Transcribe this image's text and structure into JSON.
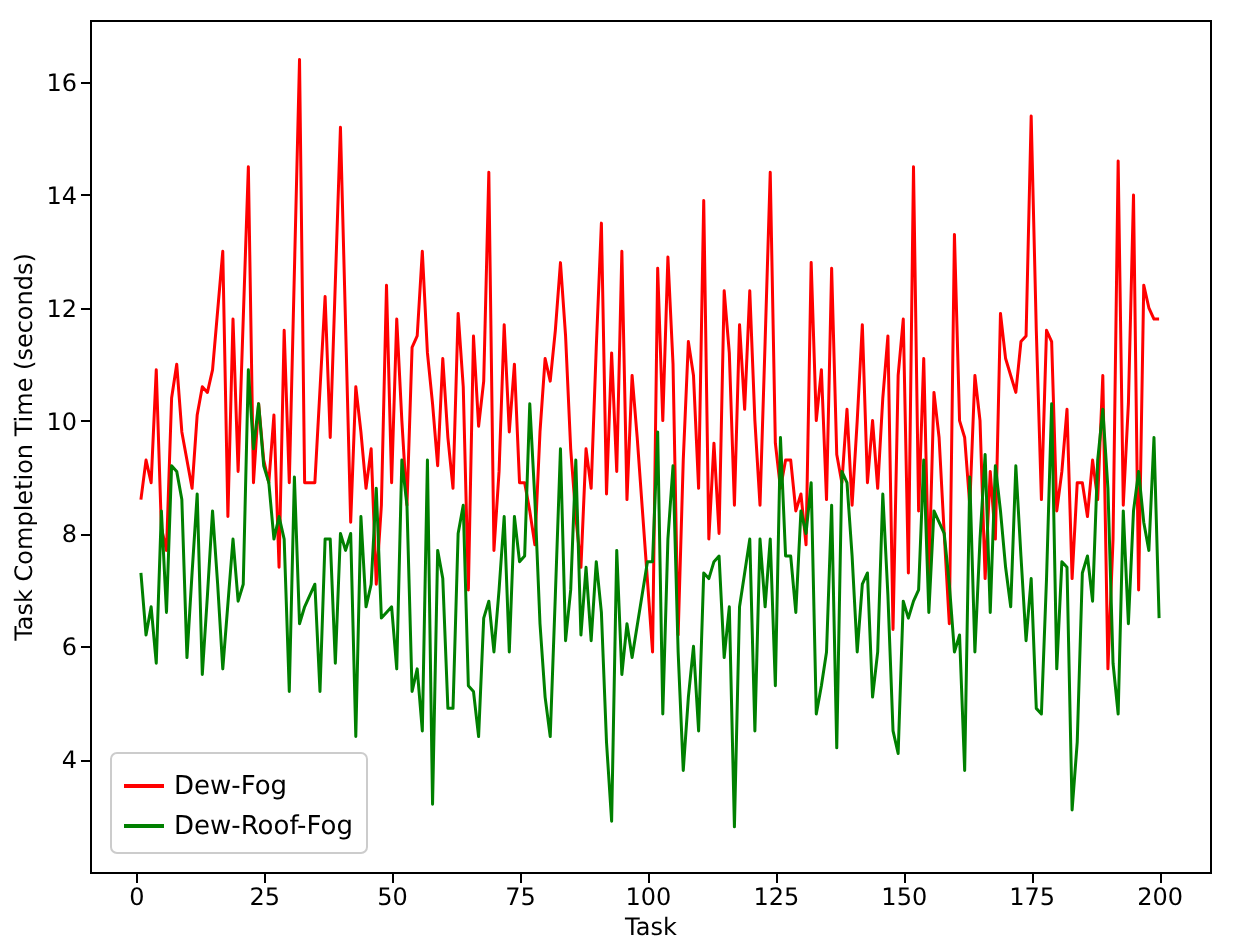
{
  "chart_data": {
    "type": "line",
    "xlabel": "Task",
    "ylabel": "Task Completion Time (seconds)",
    "xlim": [
      -8.95,
      209.95
    ],
    "ylim": [
      2.0,
      17.1
    ],
    "xticks": [
      0,
      25,
      50,
      75,
      100,
      125,
      150,
      175,
      200
    ],
    "yticks": [
      4,
      6,
      8,
      10,
      12,
      14,
      16
    ],
    "grid": false,
    "legend": "bottom left",
    "line_style": "solid",
    "marker": "none",
    "series": [
      {
        "name": "Dew-Fog",
        "color": "#ff0000",
        "x": [
          1,
          2,
          3,
          4,
          5,
          6,
          7,
          8,
          9,
          11,
          12,
          13,
          14,
          15,
          17,
          18,
          19,
          20,
          21,
          22,
          23,
          24,
          25,
          26,
          27,
          28,
          29,
          30,
          32,
          33,
          35,
          37,
          38,
          40,
          42,
          43,
          44,
          45,
          46,
          47,
          48,
          49,
          50,
          51,
          52,
          53,
          54,
          55,
          56,
          57,
          58,
          59,
          60,
          61,
          62,
          63,
          64,
          65,
          66,
          67,
          68,
          69,
          70,
          71,
          72,
          73,
          74,
          75,
          76,
          77,
          78,
          79,
          80,
          81,
          82,
          83,
          84,
          85,
          86,
          87,
          88,
          89,
          90,
          91,
          92,
          93,
          94,
          95,
          96,
          97,
          98,
          101,
          102,
          103,
          104,
          105,
          106,
          107,
          108,
          109,
          110,
          111,
          112,
          113,
          114,
          115,
          116,
          117,
          118,
          119,
          120,
          121,
          122,
          123,
          124,
          125,
          126,
          127,
          128,
          129,
          130,
          131,
          132,
          133,
          134,
          135,
          136,
          137,
          138,
          139,
          140,
          141,
          142,
          143,
          144,
          145,
          146,
          147,
          148,
          149,
          150,
          151,
          152,
          153,
          154,
          155,
          156,
          157,
          158,
          159,
          160,
          161,
          162,
          163,
          164,
          165,
          166,
          167,
          168,
          169,
          170,
          171,
          172,
          173,
          174,
          175,
          176,
          177,
          178,
          179,
          180,
          181,
          182,
          183,
          184,
          185,
          186,
          187,
          188,
          189,
          190,
          191,
          192,
          193,
          194,
          195,
          196,
          197,
          198,
          199,
          200
        ],
        "values": [
          8.6,
          9.3,
          8.9,
          10.9,
          8.1,
          7.7,
          10.4,
          11.0,
          9.8,
          8.8,
          10.1,
          10.6,
          10.5,
          10.9,
          13.0,
          8.3,
          11.8,
          9.1,
          11.8,
          14.5,
          8.9,
          10.3,
          9.3,
          8.9,
          10.1,
          7.4,
          11.6,
          8.9,
          16.4,
          8.9,
          8.9,
          12.2,
          9.7,
          15.2,
          8.2,
          10.6,
          9.8,
          8.8,
          9.5,
          7.1,
          8.5,
          12.4,
          8.9,
          11.8,
          10.0,
          8.5,
          11.3,
          11.5,
          13.0,
          11.2,
          10.3,
          9.2,
          11.1,
          9.7,
          8.8,
          11.9,
          10.6,
          7.0,
          11.5,
          9.9,
          10.7,
          14.4,
          7.7,
          9.1,
          11.7,
          9.8,
          11.0,
          8.9,
          8.9,
          8.4,
          7.8,
          9.8,
          11.1,
          10.7,
          11.6,
          12.8,
          11.5,
          9.5,
          8.3,
          7.4,
          9.5,
          8.8,
          11.3,
          13.5,
          8.7,
          11.2,
          9.1,
          13.0,
          8.6,
          10.8,
          9.7,
          5.9,
          12.7,
          10.0,
          12.9,
          11.0,
          6.2,
          9.3,
          11.4,
          10.8,
          8.8,
          13.9,
          7.9,
          9.6,
          8.0,
          12.3,
          11.2,
          8.5,
          11.7,
          10.2,
          12.3,
          10.0,
          8.5,
          11.4,
          14.4,
          9.6,
          8.8,
          9.3,
          9.3,
          8.4,
          8.7,
          7.8,
          12.8,
          10.0,
          10.9,
          8.6,
          12.7,
          9.4,
          8.9,
          10.2,
          8.5,
          10.0,
          11.7,
          8.9,
          10.0,
          8.8,
          10.4,
          11.5,
          6.3,
          10.8,
          11.8,
          7.3,
          14.5,
          8.4,
          11.1,
          7.2,
          10.5,
          9.7,
          8.0,
          6.4,
          13.3,
          10.0,
          9.7,
          8.5,
          10.8,
          10.0,
          7.2,
          9.1,
          7.9,
          11.9,
          11.1,
          10.8,
          10.5,
          11.4,
          11.5,
          15.4,
          11.6,
          8.6,
          11.6,
          11.4,
          8.4,
          9.1,
          10.2,
          7.2,
          8.9,
          8.9,
          8.3,
          9.3,
          8.6,
          10.8,
          5.6,
          7.9,
          14.6,
          8.5,
          10.3,
          14.0,
          7.0,
          12.4,
          12.0,
          11.8,
          11.8
        ]
      },
      {
        "name": "Dew-Roof-Fog",
        "color": "#008000",
        "x": [
          1,
          2,
          3,
          4,
          5,
          6,
          7,
          8,
          9,
          10,
          11,
          12,
          13,
          14,
          15,
          16,
          17,
          19,
          20,
          21,
          22,
          23,
          24,
          25,
          26,
          27,
          28,
          29,
          30,
          31,
          32,
          33,
          35,
          36,
          37,
          38,
          39,
          40,
          41,
          42,
          43,
          44,
          45,
          46,
          47,
          48,
          49,
          50,
          51,
          52,
          53,
          54,
          55,
          56,
          57,
          58,
          59,
          60,
          61,
          62,
          63,
          64,
          65,
          66,
          67,
          68,
          69,
          70,
          71,
          72,
          73,
          74,
          75,
          76,
          77,
          78,
          79,
          80,
          81,
          82,
          83,
          84,
          85,
          86,
          87,
          88,
          89,
          90,
          91,
          92,
          93,
          94,
          95,
          96,
          97,
          100,
          101,
          102,
          103,
          104,
          105,
          106,
          107,
          108,
          109,
          110,
          111,
          112,
          113,
          114,
          115,
          116,
          117,
          118,
          119,
          120,
          121,
          122,
          123,
          124,
          125,
          126,
          127,
          128,
          129,
          130,
          131,
          132,
          133,
          134,
          135,
          136,
          137,
          138,
          139,
          140,
          141,
          142,
          143,
          144,
          145,
          146,
          147,
          148,
          149,
          150,
          151,
          152,
          153,
          154,
          155,
          156,
          158,
          159,
          160,
          161,
          162,
          163,
          164,
          165,
          166,
          167,
          168,
          169,
          170,
          171,
          172,
          173,
          174,
          175,
          176,
          177,
          178,
          179,
          180,
          181,
          182,
          183,
          184,
          185,
          186,
          187,
          188,
          189,
          190,
          191,
          192,
          193,
          194,
          195,
          196,
          197,
          198,
          199,
          200
        ],
        "values": [
          7.3,
          6.2,
          6.7,
          5.7,
          8.4,
          6.6,
          9.2,
          9.1,
          8.6,
          5.8,
          7.3,
          8.7,
          5.5,
          6.9,
          8.4,
          7.1,
          5.6,
          7.9,
          6.8,
          7.1,
          10.9,
          9.5,
          10.3,
          9.2,
          8.9,
          7.9,
          8.3,
          7.9,
          5.2,
          9.0,
          6.4,
          6.7,
          7.1,
          5.2,
          7.9,
          7.9,
          5.7,
          8.0,
          7.7,
          8.0,
          4.4,
          8.3,
          6.7,
          7.1,
          8.8,
          6.5,
          6.6,
          6.7,
          5.6,
          9.3,
          8.5,
          5.2,
          5.6,
          4.5,
          9.3,
          3.2,
          7.7,
          7.2,
          4.9,
          4.9,
          8.0,
          8.5,
          5.3,
          5.2,
          4.4,
          6.5,
          6.8,
          5.9,
          7.0,
          8.3,
          5.9,
          8.3,
          7.5,
          7.6,
          10.3,
          8.6,
          6.4,
          5.1,
          4.4,
          6.9,
          9.5,
          6.1,
          7.0,
          9.3,
          6.2,
          7.4,
          6.1,
          7.5,
          6.6,
          4.3,
          2.9,
          7.7,
          5.5,
          6.4,
          5.8,
          7.5,
          7.5,
          9.8,
          4.8,
          7.9,
          9.2,
          5.9,
          3.8,
          5.1,
          6.0,
          4.5,
          7.3,
          7.2,
          7.5,
          7.6,
          5.8,
          6.7,
          2.8,
          6.7,
          7.3,
          7.9,
          4.5,
          7.9,
          6.7,
          7.9,
          5.3,
          9.7,
          7.6,
          7.6,
          6.6,
          8.4,
          8.0,
          8.9,
          4.8,
          5.3,
          5.9,
          8.5,
          4.2,
          9.1,
          8.9,
          7.6,
          5.9,
          7.1,
          7.3,
          5.1,
          5.9,
          8.7,
          6.9,
          4.5,
          4.1,
          6.8,
          6.5,
          6.8,
          7.0,
          9.3,
          6.6,
          8.4,
          8.0,
          7.1,
          5.9,
          6.2,
          3.8,
          9.0,
          5.9,
          7.9,
          9.4,
          6.6,
          9.2,
          8.4,
          7.4,
          6.7,
          9.2,
          7.6,
          6.1,
          7.2,
          4.9,
          4.8,
          7.2,
          10.3,
          5.6,
          7.5,
          7.4,
          3.1,
          4.3,
          7.3,
          7.6,
          6.8,
          9.3,
          10.2,
          8.8,
          5.7,
          4.8,
          8.4,
          6.4,
          8.4,
          9.1,
          8.2,
          7.7,
          9.7,
          6.5
        ]
      }
    ]
  }
}
